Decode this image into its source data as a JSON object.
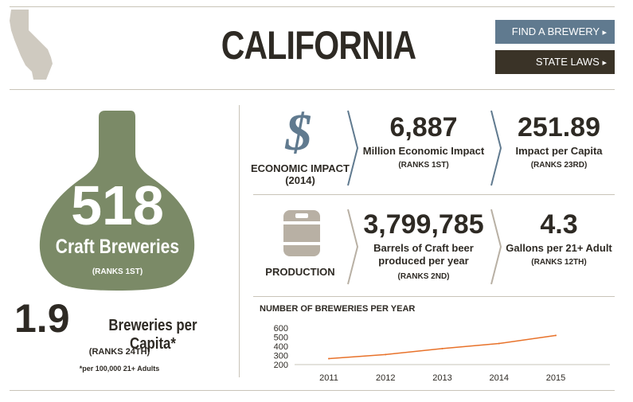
{
  "header": {
    "state_name": "CALIFORNIA",
    "find_brewery_label": "FIND A BREWERY",
    "state_laws_label": "STATE LAWS",
    "arrow": "▸"
  },
  "breweries": {
    "count": "518",
    "label": "Craft Breweries",
    "rank": "(RANKS 1ST)",
    "per_capita_value": "1.9",
    "per_capita_label": "Breweries per Capita*",
    "per_capita_rank": "(RANKS 24TH)",
    "footnote": "*per 100,000 21+ Adults"
  },
  "economic_impact": {
    "icon_glyph": "$",
    "title_line1": "ECONOMIC IMPACT",
    "title_line2": "(2014)",
    "value": "6,887",
    "label": "Million Economic Impact",
    "rank": "(RANKS 1ST)",
    "per_capita_value": "251.89",
    "per_capita_label": "Impact per Capita",
    "per_capita_rank": "(RANKS 23RD)"
  },
  "production": {
    "title": "PRODUCTION",
    "value": "3,799,785",
    "label_line1": "Barrels of Craft beer",
    "label_line2": "produced per year",
    "rank": "(RANKS 2ND)",
    "per_adult_value": "4.3",
    "per_adult_label": "Gallons per 21+ Adult",
    "per_adult_rank": "(RANKS 12TH)"
  },
  "colors": {
    "olive": "#7b8a67",
    "slate": "#607a8f",
    "dark": "#3a3327",
    "barrel": "#b8b0a4",
    "line": "#e8722a"
  },
  "chart_data": {
    "type": "line",
    "title": "NUMBER OF BREWERIES PER YEAR",
    "categories": [
      "2011",
      "2012",
      "2013",
      "2014",
      "2015"
    ],
    "values": [
      265,
      310,
      375,
      430,
      518
    ],
    "ylim": [
      200,
      600
    ],
    "yticks": [
      "600",
      "500",
      "400",
      "300",
      "200"
    ],
    "grid": false,
    "legend": "none"
  }
}
